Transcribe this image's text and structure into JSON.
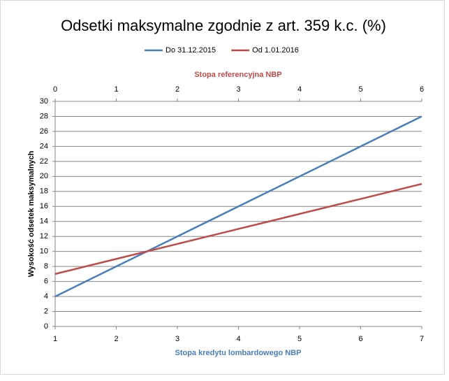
{
  "chart_data": {
    "type": "line",
    "title": "Odsetki maksymalne zgodnie z art. 359 k.c. (%)",
    "x_label": "Stopa kredytu lombardowego NBP",
    "x2_label": "Stopa referencyjna NBP",
    "y_label": "Wysokość odsetek maksymalnych",
    "xlim": [
      1,
      7
    ],
    "xticks": [
      1,
      2,
      3,
      4,
      5,
      6,
      7
    ],
    "x2lim": [
      0,
      6
    ],
    "x2ticks": [
      0,
      1,
      2,
      3,
      4,
      5,
      6
    ],
    "ylim": [
      0,
      30
    ],
    "yticks": [
      0,
      2,
      4,
      6,
      8,
      10,
      12,
      14,
      16,
      18,
      20,
      22,
      24,
      26,
      28,
      30
    ],
    "grid": true,
    "legend": "top",
    "series": [
      {
        "name": "Do 31.12.2015",
        "color": "#4a7ebb",
        "x": [
          1,
          2,
          3,
          4,
          5,
          6,
          7
        ],
        "values": [
          4,
          8,
          12,
          16,
          20,
          24,
          28
        ]
      },
      {
        "name": "Od 1.01.2016",
        "color": "#be4b48",
        "axis": "x2",
        "x": [
          0,
          1,
          2,
          3,
          4,
          5,
          6
        ],
        "values": [
          7,
          9,
          11,
          13,
          15,
          17,
          19
        ]
      }
    ]
  }
}
